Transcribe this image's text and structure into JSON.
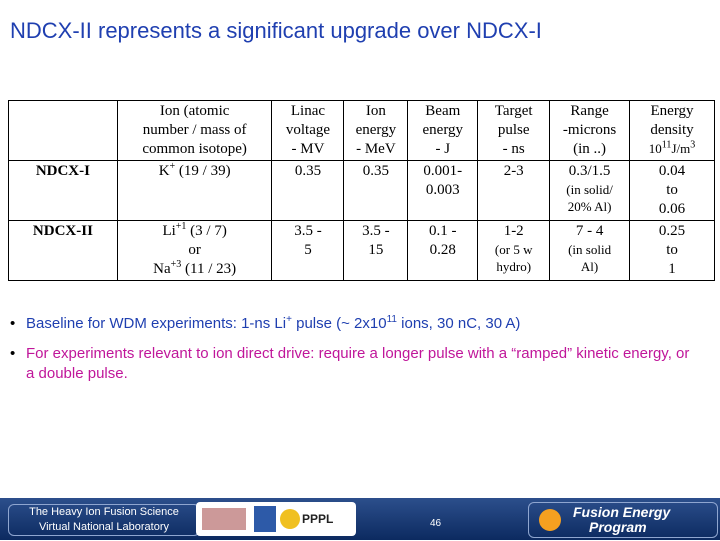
{
  "title": "NDCX-II represents a significant upgrade over NDCX-I",
  "table": {
    "header": [
      [
        [
          "Ion (atomic"
        ],
        [
          "number / mass of"
        ],
        [
          "common isotope)"
        ]
      ],
      [
        [
          "Linac"
        ],
        [
          "voltage"
        ],
        [
          "- MV"
        ]
      ],
      [
        [
          "Ion"
        ],
        [
          "energy"
        ],
        [
          "- MeV"
        ]
      ],
      [
        [
          "Beam"
        ],
        [
          "energy"
        ],
        [
          "- J"
        ]
      ],
      [
        [
          "Target"
        ],
        [
          "pulse"
        ],
        [
          "- ns"
        ]
      ],
      [
        [
          "Range"
        ],
        [
          "-microns"
        ],
        [
          "(in ..)"
        ]
      ],
      [
        [
          "Energy"
        ],
        [
          "density"
        ],
        {
          "small": [
            "10",
            {
              "sup": "11"
            },
            "J/m",
            {
              "sup": "3"
            }
          ]
        }
      ]
    ],
    "rows": [
      {
        "label": "NDCX-I",
        "cells": [
          [
            [
              "K",
              {
                "sup": "+"
              },
              " (19 / 39)"
            ]
          ],
          [
            [
              "0.35"
            ]
          ],
          [
            [
              "0.35"
            ]
          ],
          [
            [
              "0.001-"
            ],
            [
              "0.003"
            ]
          ],
          [
            [
              "2-3"
            ]
          ],
          [
            [
              "0.3/1.5"
            ],
            {
              "small": [
                "(in solid/"
              ]
            },
            {
              "small": [
                "20% Al)"
              ]
            }
          ],
          [
            [
              "0.04"
            ],
            [
              "to"
            ],
            [
              "0.06"
            ]
          ]
        ]
      },
      {
        "label": "NDCX-II",
        "cells": [
          [
            [
              "Li",
              {
                "sup": "+1"
              },
              " (3 / 7)"
            ],
            [
              "or"
            ],
            [
              "Na",
              {
                "sup": "+3"
              },
              " (11 / 23)"
            ]
          ],
          [
            [
              "3.5 -"
            ],
            [
              "5"
            ]
          ],
          [
            [
              "3.5 -"
            ],
            [
              "15"
            ]
          ],
          [
            [
              "0.1 -"
            ],
            [
              "0.28"
            ]
          ],
          [
            [
              "1-2"
            ],
            {
              "small": [
                "(or 5 w"
              ]
            },
            {
              "small": [
                "hydro)"
              ]
            }
          ],
          [
            [
              "7 - 4"
            ],
            {
              "small": [
                "(in solid"
              ]
            },
            {
              "small": [
                "Al)"
              ]
            }
          ],
          [
            [
              "0.25"
            ],
            [
              "to"
            ],
            [
              "1"
            ]
          ]
        ]
      }
    ]
  },
  "bullets": [
    {
      "color": "#1f3fb0",
      "parts": [
        "Baseline for WDM experiments: 1-ns Li",
        {
          "sup": "+"
        },
        " pulse (~ 2x10",
        {
          "sup": "11"
        },
        " ions, 30 nC, 30 A)"
      ]
    },
    {
      "color": "#c0169a",
      "parts": [
        "For experiments relevant to ion direct drive: require a longer pulse with a “ramped” kinetic energy, or a double pulse."
      ]
    }
  ],
  "footer": {
    "org": [
      "The Heavy Ion Fusion Science",
      "Virtual National Laboratory"
    ],
    "lab": "PPPL",
    "page": "46",
    "program": [
      "Fusion Energy",
      "Program"
    ]
  }
}
